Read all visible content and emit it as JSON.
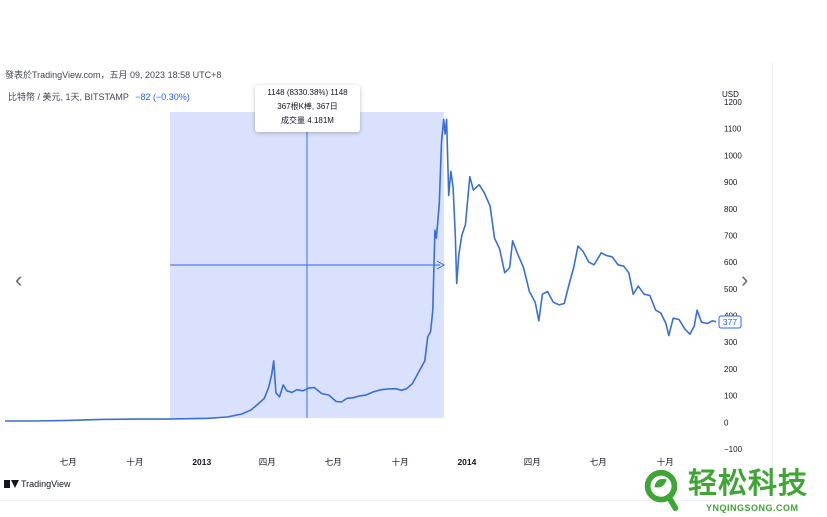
{
  "header": {
    "published_line": "發表於TradingView.com，五月 09, 2023 18:58 UTC+8"
  },
  "symbol": {
    "name": "比特幣 / 美元, 1天, BITSTAMP",
    "change": "−82 (−0.30%)"
  },
  "tooltip": {
    "line1": "1148 (8330.38%) 1148",
    "line2": "367根K棒, 367日",
    "line3": "成交量 4.181M"
  },
  "price_axis": {
    "currency_label": "USD",
    "ticks": [
      "1200",
      "1100",
      "1000",
      "900",
      "800",
      "700",
      "600",
      "500",
      "400",
      "300",
      "200",
      "100",
      "0",
      "−100"
    ],
    "last_price_label": "377"
  },
  "time_axis": {
    "ticks": [
      "七月",
      "十月",
      "2013",
      "四月",
      "七月",
      "十月",
      "2014",
      "四月",
      "七月",
      "十月"
    ]
  },
  "brand": {
    "label": "TradingView"
  },
  "watermark": {
    "title": "轻松科技",
    "url": "YNQINGSONG.COM"
  },
  "colors": {
    "line": "#3a6fd8",
    "selection": "#cfd9fb",
    "crosshair": "#2962ff",
    "watermark": "#3fa535",
    "accent": "#2962ff"
  },
  "icons": {
    "prev": "chevron-left-icon",
    "next": "chevron-right-icon"
  },
  "chart_data": {
    "type": "line",
    "title": "比特幣 / 美元, 1天, BITSTAMP",
    "xlabel": "",
    "ylabel": "USD",
    "ylim": [
      -100,
      1200
    ],
    "x_tick_labels": [
      "七月",
      "十月",
      "2013",
      "四月",
      "七月",
      "十月",
      "2014",
      "四月",
      "七月",
      "十月"
    ],
    "x_range": [
      "2012-04-05",
      "2014-12-10"
    ],
    "grid": false,
    "legend": "none",
    "measurement": {
      "start_date": "2012-11-28",
      "end_date": "2013-11-30",
      "change": "1148 (8330.38%)",
      "bars": 367,
      "volume": "4.181M"
    },
    "series": [
      {
        "values": [
          {
            "x": "2012-04-05",
            "y": 5
          },
          {
            "x": "2012-05-15",
            "y": 5
          },
          {
            "x": "2012-07-01",
            "y": 7
          },
          {
            "x": "2012-08-15",
            "y": 11
          },
          {
            "x": "2012-10-01",
            "y": 12
          },
          {
            "x": "2012-11-10",
            "y": 12
          },
          {
            "x": "2012-12-05",
            "y": 13
          },
          {
            "x": "2013-01-10",
            "y": 15
          },
          {
            "x": "2013-02-05",
            "y": 20
          },
          {
            "x": "2013-02-25",
            "y": 31
          },
          {
            "x": "2013-03-10",
            "y": 47
          },
          {
            "x": "2013-03-20",
            "y": 70
          },
          {
            "x": "2013-03-28",
            "y": 90
          },
          {
            "x": "2013-04-03",
            "y": 130
          },
          {
            "x": "2013-04-07",
            "y": 175
          },
          {
            "x": "2013-04-10",
            "y": 230
          },
          {
            "x": "2013-04-13",
            "y": 110
          },
          {
            "x": "2013-04-18",
            "y": 95
          },
          {
            "x": "2013-04-23",
            "y": 140
          },
          {
            "x": "2013-04-28",
            "y": 118
          },
          {
            "x": "2013-05-05",
            "y": 112
          },
          {
            "x": "2013-05-12",
            "y": 122
          },
          {
            "x": "2013-05-20",
            "y": 118
          },
          {
            "x": "2013-05-28",
            "y": 128
          },
          {
            "x": "2013-06-05",
            "y": 130
          },
          {
            "x": "2013-06-15",
            "y": 108
          },
          {
            "x": "2013-06-25",
            "y": 102
          },
          {
            "x": "2013-07-05",
            "y": 78
          },
          {
            "x": "2013-07-12",
            "y": 76
          },
          {
            "x": "2013-07-20",
            "y": 90
          },
          {
            "x": "2013-07-28",
            "y": 92
          },
          {
            "x": "2013-08-05",
            "y": 98
          },
          {
            "x": "2013-08-15",
            "y": 102
          },
          {
            "x": "2013-08-25",
            "y": 114
          },
          {
            "x": "2013-09-05",
            "y": 122
          },
          {
            "x": "2013-09-15",
            "y": 125
          },
          {
            "x": "2013-09-25",
            "y": 126
          },
          {
            "x": "2013-10-03",
            "y": 120
          },
          {
            "x": "2013-10-10",
            "y": 126
          },
          {
            "x": "2013-10-18",
            "y": 145
          },
          {
            "x": "2013-10-25",
            "y": 180
          },
          {
            "x": "2013-10-30",
            "y": 205
          },
          {
            "x": "2013-11-04",
            "y": 230
          },
          {
            "x": "2013-11-08",
            "y": 320
          },
          {
            "x": "2013-11-12",
            "y": 340
          },
          {
            "x": "2013-11-15",
            "y": 420
          },
          {
            "x": "2013-11-18",
            "y": 720
          },
          {
            "x": "2013-11-20",
            "y": 690
          },
          {
            "x": "2013-11-24",
            "y": 820
          },
          {
            "x": "2013-11-27",
            "y": 1050
          },
          {
            "x": "2013-11-30",
            "y": 1135
          },
          {
            "x": "2013-12-02",
            "y": 1080
          },
          {
            "x": "2013-12-04",
            "y": 1135
          },
          {
            "x": "2013-12-07",
            "y": 850
          },
          {
            "x": "2013-12-10",
            "y": 940
          },
          {
            "x": "2013-12-13",
            "y": 880
          },
          {
            "x": "2013-12-16",
            "y": 700
          },
          {
            "x": "2013-12-18",
            "y": 520
          },
          {
            "x": "2013-12-21",
            "y": 630
          },
          {
            "x": "2013-12-25",
            "y": 700
          },
          {
            "x": "2013-12-30",
            "y": 740
          },
          {
            "x": "2014-01-05",
            "y": 920
          },
          {
            "x": "2014-01-10",
            "y": 870
          },
          {
            "x": "2014-01-18",
            "y": 890
          },
          {
            "x": "2014-01-25",
            "y": 860
          },
          {
            "x": "2014-02-02",
            "y": 810
          },
          {
            "x": "2014-02-08",
            "y": 690
          },
          {
            "x": "2014-02-15",
            "y": 650
          },
          {
            "x": "2014-02-22",
            "y": 560
          },
          {
            "x": "2014-03-01",
            "y": 580
          },
          {
            "x": "2014-03-05",
            "y": 680
          },
          {
            "x": "2014-03-12",
            "y": 630
          },
          {
            "x": "2014-03-20",
            "y": 580
          },
          {
            "x": "2014-03-28",
            "y": 490
          },
          {
            "x": "2014-04-05",
            "y": 450
          },
          {
            "x": "2014-04-10",
            "y": 380
          },
          {
            "x": "2014-04-15",
            "y": 480
          },
          {
            "x": "2014-04-22",
            "y": 490
          },
          {
            "x": "2014-04-30",
            "y": 450
          },
          {
            "x": "2014-05-08",
            "y": 440
          },
          {
            "x": "2014-05-15",
            "y": 445
          },
          {
            "x": "2014-05-22",
            "y": 520
          },
          {
            "x": "2014-05-28",
            "y": 580
          },
          {
            "x": "2014-06-03",
            "y": 660
          },
          {
            "x": "2014-06-10",
            "y": 640
          },
          {
            "x": "2014-06-18",
            "y": 600
          },
          {
            "x": "2014-06-25",
            "y": 590
          },
          {
            "x": "2014-07-05",
            "y": 635
          },
          {
            "x": "2014-07-12",
            "y": 625
          },
          {
            "x": "2014-07-20",
            "y": 620
          },
          {
            "x": "2014-07-28",
            "y": 590
          },
          {
            "x": "2014-08-05",
            "y": 585
          },
          {
            "x": "2014-08-12",
            "y": 560
          },
          {
            "x": "2014-08-18",
            "y": 480
          },
          {
            "x": "2014-08-25",
            "y": 510
          },
          {
            "x": "2014-09-02",
            "y": 480
          },
          {
            "x": "2014-09-10",
            "y": 475
          },
          {
            "x": "2014-09-18",
            "y": 420
          },
          {
            "x": "2014-09-25",
            "y": 410
          },
          {
            "x": "2014-10-02",
            "y": 370
          },
          {
            "x": "2014-10-06",
            "y": 325
          },
          {
            "x": "2014-10-12",
            "y": 390
          },
          {
            "x": "2014-10-20",
            "y": 385
          },
          {
            "x": "2014-10-28",
            "y": 350
          },
          {
            "x": "2014-11-04",
            "y": 330
          },
          {
            "x": "2014-11-10",
            "y": 360
          },
          {
            "x": "2014-11-14",
            "y": 420
          },
          {
            "x": "2014-11-20",
            "y": 375
          },
          {
            "x": "2014-11-28",
            "y": 370
          },
          {
            "x": "2014-12-05",
            "y": 380
          },
          {
            "x": "2014-12-10",
            "y": 377
          }
        ]
      }
    ]
  }
}
